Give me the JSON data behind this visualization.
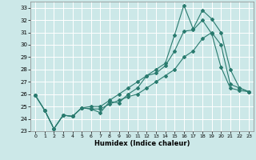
{
  "xlabel": "Humidex (Indice chaleur)",
  "bg_color": "#cce8e8",
  "line_color": "#2a7b6f",
  "grid_color": "#ffffff",
  "xlim": [
    -0.5,
    23.5
  ],
  "ylim": [
    23,
    33.5
  ],
  "xticks": [
    0,
    1,
    2,
    3,
    4,
    5,
    6,
    7,
    8,
    9,
    10,
    11,
    12,
    13,
    14,
    15,
    16,
    17,
    18,
    19,
    20,
    21,
    22,
    23
  ],
  "yticks": [
    23,
    24,
    25,
    26,
    27,
    28,
    29,
    30,
    31,
    32,
    33
  ],
  "line1_x": [
    0,
    1,
    2,
    3,
    4,
    5,
    6,
    7,
    8,
    9,
    10,
    11,
    12,
    13,
    14,
    15,
    16,
    17,
    18,
    19,
    20,
    21,
    22,
    23
  ],
  "line1_y": [
    25.9,
    24.7,
    23.2,
    24.3,
    24.2,
    24.9,
    24.8,
    24.5,
    25.4,
    25.3,
    26.0,
    26.5,
    27.5,
    27.7,
    28.3,
    29.5,
    31.1,
    31.2,
    32.0,
    30.9,
    28.2,
    26.5,
    26.3,
    26.2
  ],
  "line2_x": [
    0,
    1,
    2,
    3,
    4,
    5,
    6,
    7,
    8,
    9,
    10,
    11,
    12,
    13,
    14,
    15,
    16,
    17,
    18,
    19,
    20,
    21,
    22,
    23
  ],
  "line2_y": [
    25.9,
    24.7,
    23.2,
    24.3,
    24.2,
    24.9,
    25.0,
    25.0,
    25.5,
    26.0,
    26.5,
    27.0,
    27.5,
    28.0,
    28.5,
    30.8,
    33.2,
    31.3,
    32.8,
    32.1,
    31.0,
    28.0,
    26.5,
    26.2
  ],
  "line3_x": [
    0,
    1,
    2,
    3,
    4,
    5,
    6,
    7,
    8,
    9,
    10,
    11,
    12,
    13,
    14,
    15,
    16,
    17,
    18,
    19,
    20,
    21,
    22,
    23
  ],
  "line3_y": [
    25.9,
    24.7,
    23.2,
    24.3,
    24.2,
    24.9,
    24.8,
    24.8,
    25.2,
    25.5,
    25.8,
    26.0,
    26.5,
    27.0,
    27.5,
    28.0,
    29.0,
    29.5,
    30.5,
    31.0,
    30.0,
    26.8,
    26.5,
    26.2
  ],
  "marker": "D",
  "markersize": 2.0,
  "linewidth": 0.8,
  "xlabel_fontsize": 6,
  "tick_labelsize": 4.5,
  "ytick_labelsize": 5.0
}
